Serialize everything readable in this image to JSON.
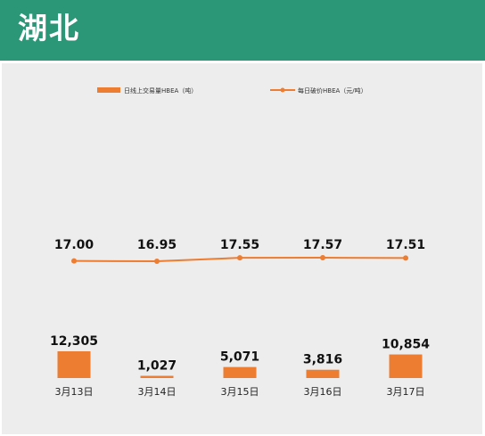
{
  "header": {
    "title": "湖北"
  },
  "colors": {
    "header_bg": "#2b9777",
    "series": "#ed7d31",
    "panel_bg": "#ededed"
  },
  "chart_data": {
    "type": "bar+line",
    "categories": [
      "3月13日",
      "3月14日",
      "3月15日",
      "3月16日",
      "3月17日"
    ],
    "series": [
      {
        "name": "日线上交易量HBEA（吨）",
        "type": "bar",
        "values": [
          12305,
          1027,
          5071,
          3816,
          10854
        ],
        "labels": [
          "12,305",
          "1,027",
          "5,071",
          "3,816",
          "10,854"
        ]
      },
      {
        "name": "每日破价HBEA（元/吨）",
        "type": "line",
        "values": [
          17.0,
          16.95,
          17.55,
          17.57,
          17.51
        ],
        "labels": [
          "17.00",
          "16.95",
          "17.55",
          "17.57",
          "17.51"
        ]
      }
    ],
    "legend": "top",
    "grid": false
  }
}
